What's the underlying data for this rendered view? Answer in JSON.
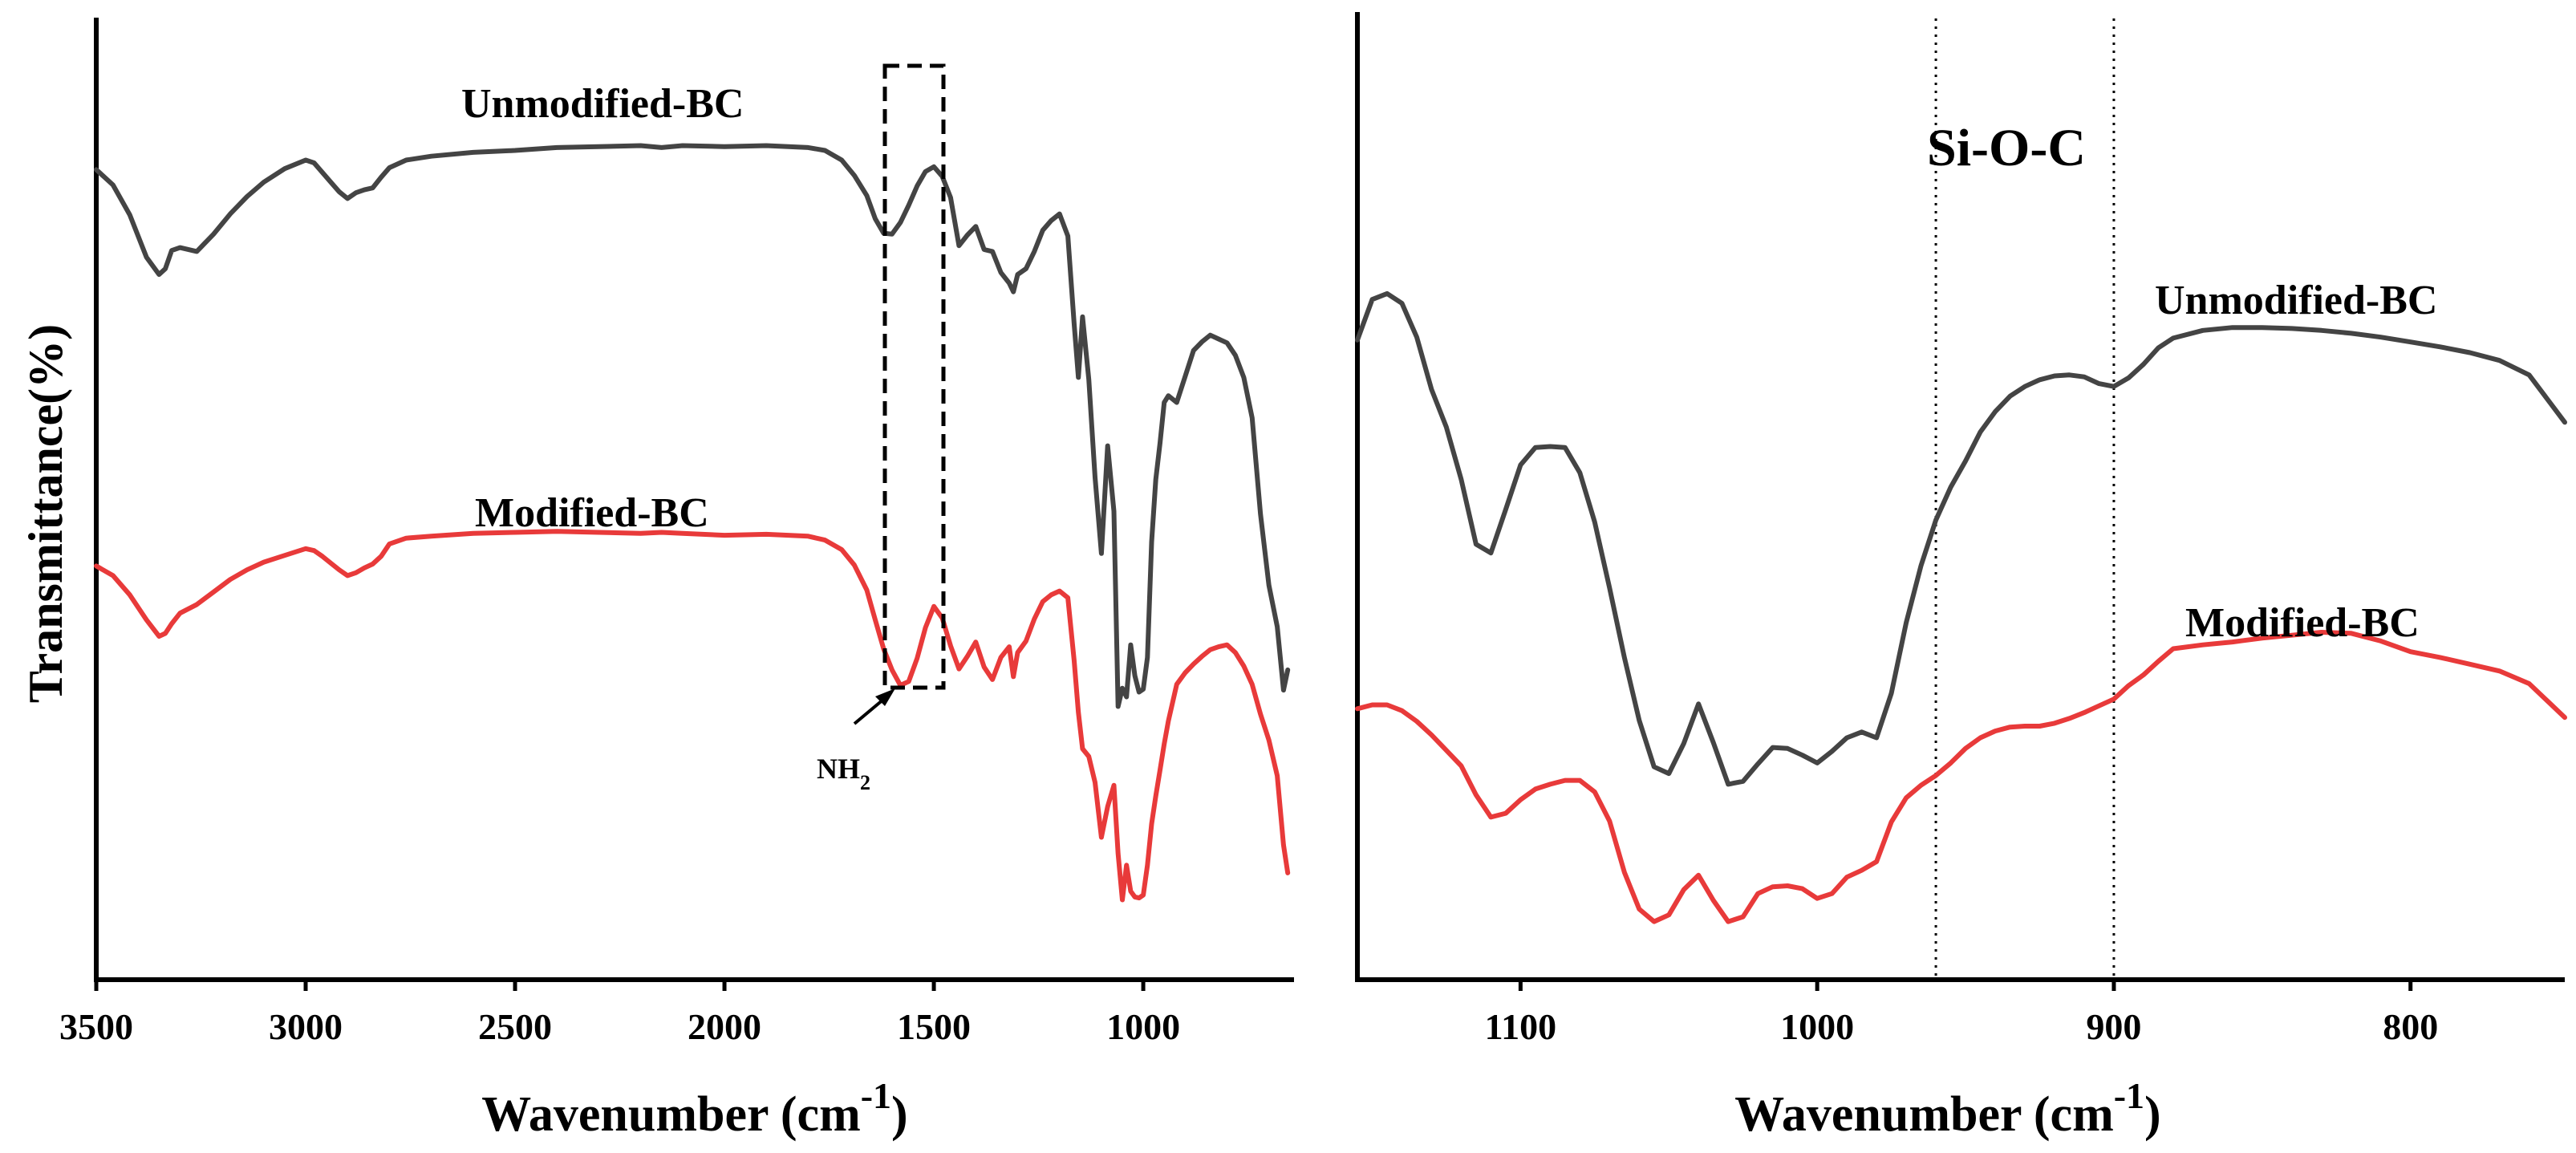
{
  "figure": {
    "shared_ylabel": "Transmittance(%)"
  },
  "chart_data": [
    {
      "type": "line",
      "panel": "left",
      "title": "",
      "xlabel": "Wavenumber (cm",
      "xlabel_superscript": "-1",
      "xlabel_close": ")",
      "ylabel": "Transmittance(%)",
      "xlim": [
        3500,
        640
      ],
      "ylim": [
        0,
        100
      ],
      "x_reversed": true,
      "grid": false,
      "xticks": [
        3500,
        3000,
        2500,
        2000,
        1500,
        1000
      ],
      "annotations": {
        "box_label": "NH",
        "box_label_sub": "2",
        "box_x": [
          1590,
          1450
        ]
      },
      "series": [
        {
          "name": "Unmodified-BC",
          "color": "#444444",
          "x": [
            3500,
            3460,
            3420,
            3380,
            3350,
            3335,
            3320,
            3300,
            3260,
            3220,
            3180,
            3140,
            3100,
            3050,
            3000,
            2980,
            2960,
            2940,
            2920,
            2900,
            2880,
            2860,
            2840,
            2820,
            2800,
            2760,
            2700,
            2600,
            2500,
            2400,
            2300,
            2200,
            2150,
            2100,
            2000,
            1900,
            1800,
            1760,
            1720,
            1690,
            1660,
            1640,
            1620,
            1600,
            1580,
            1560,
            1540,
            1520,
            1500,
            1480,
            1460,
            1440,
            1420,
            1400,
            1380,
            1360,
            1340,
            1320,
            1310,
            1300,
            1280,
            1260,
            1240,
            1220,
            1200,
            1180,
            1165,
            1155,
            1145,
            1130,
            1115,
            1100,
            1085,
            1070,
            1060,
            1050,
            1040,
            1030,
            1020,
            1010,
            1000,
            990,
            980,
            970,
            960,
            950,
            940,
            920,
            900,
            880,
            860,
            840,
            820,
            800,
            780,
            760,
            740,
            720,
            700,
            680,
            665,
            655
          ],
          "values": [
            84.2,
            82.6,
            79.5,
            75.1,
            73.3,
            73.9,
            75.8,
            76.1,
            75.7,
            77.5,
            79.6,
            81.4,
            82.9,
            84.3,
            85.2,
            84.9,
            83.9,
            82.9,
            81.9,
            81.2,
            81.8,
            82.1,
            82.3,
            83.4,
            84.4,
            85.2,
            85.6,
            86.0,
            86.2,
            86.5,
            86.6,
            86.7,
            86.5,
            86.7,
            86.6,
            86.7,
            86.5,
            86.2,
            85.2,
            83.6,
            81.5,
            79.1,
            77.6,
            77.5,
            78.7,
            80.5,
            82.5,
            84.0,
            84.5,
            83.5,
            81.3,
            76.3,
            77.4,
            78.3,
            75.9,
            75.7,
            73.5,
            72.4,
            71.5,
            73.3,
            73.9,
            75.7,
            77.9,
            78.9,
            79.6,
            77.3,
            68.2,
            62.6,
            68.9,
            62.4,
            52.2,
            44.3,
            55.5,
            48.7,
            28.4,
            30.3,
            29.4,
            34.8,
            31.6,
            29.9,
            30.2,
            33.5,
            45.5,
            52.0,
            55.8,
            60.0,
            60.7,
            60.0,
            62.7,
            65.4,
            66.3,
            67.0,
            66.6,
            66.2,
            64.9,
            62.6,
            58.4,
            48.4,
            41.0,
            36.7,
            30.1,
            32.2
          ]
        },
        {
          "name": "Modified-BC",
          "color": "#e83a3a",
          "x": [
            3500,
            3460,
            3420,
            3380,
            3350,
            3335,
            3320,
            3300,
            3260,
            3220,
            3180,
            3140,
            3100,
            3050,
            3000,
            2980,
            2960,
            2940,
            2920,
            2900,
            2880,
            2860,
            2840,
            2820,
            2800,
            2760,
            2700,
            2600,
            2500,
            2400,
            2300,
            2200,
            2150,
            2100,
            2000,
            1900,
            1800,
            1760,
            1720,
            1690,
            1660,
            1640,
            1620,
            1600,
            1580,
            1560,
            1540,
            1520,
            1500,
            1480,
            1460,
            1440,
            1420,
            1400,
            1380,
            1360,
            1340,
            1320,
            1310,
            1300,
            1280,
            1260,
            1240,
            1220,
            1200,
            1180,
            1165,
            1155,
            1145,
            1130,
            1115,
            1100,
            1085,
            1070,
            1060,
            1050,
            1040,
            1030,
            1020,
            1010,
            1000,
            990,
            980,
            970,
            960,
            950,
            940,
            920,
            900,
            880,
            860,
            840,
            820,
            800,
            780,
            760,
            740,
            720,
            700,
            680,
            665,
            655
          ],
          "values": [
            43.0,
            42.0,
            40.0,
            37.4,
            35.7,
            36.0,
            37.0,
            38.1,
            39.0,
            40.3,
            41.6,
            42.6,
            43.4,
            44.1,
            44.8,
            44.6,
            44.0,
            43.3,
            42.6,
            42.0,
            42.3,
            42.8,
            43.2,
            44.0,
            45.3,
            45.9,
            46.1,
            46.4,
            46.5,
            46.6,
            46.5,
            46.4,
            46.5,
            46.4,
            46.2,
            46.3,
            46.1,
            45.7,
            44.7,
            43.1,
            40.5,
            37.4,
            34.4,
            32.2,
            30.6,
            31.0,
            33.4,
            36.6,
            38.8,
            37.6,
            34.7,
            32.3,
            33.6,
            35.1,
            32.5,
            31.2,
            33.5,
            34.6,
            31.5,
            34.0,
            35.2,
            37.5,
            39.3,
            40.0,
            40.4,
            39.7,
            33.2,
            27.8,
            24.0,
            23.2,
            20.5,
            14.8,
            18.0,
            20.2,
            13.1,
            8.3,
            11.9,
            9.2,
            8.6,
            8.5,
            8.8,
            11.9,
            16.2,
            19.1,
            21.8,
            24.5,
            26.9,
            30.7,
            31.9,
            32.8,
            33.6,
            34.3,
            34.6,
            34.8,
            34.0,
            32.6,
            30.7,
            27.6,
            24.9,
            21.2,
            14.0,
            11.1
          ]
        }
      ]
    },
    {
      "type": "line",
      "panel": "right",
      "title": "",
      "xlabel": "Wavenumber (cm",
      "xlabel_superscript": "-1",
      "xlabel_close": ")",
      "ylabel": "",
      "xlim": [
        1155,
        748
      ],
      "ylim": [
        0,
        100
      ],
      "x_reversed": true,
      "grid": false,
      "xticks": [
        1100,
        1000,
        900,
        800
      ],
      "annotations": {
        "region_label": "Si-O-C",
        "region_lines_x": [
          960,
          900
        ]
      },
      "series": [
        {
          "name": "Unmodified-BC",
          "color": "#444444",
          "x": [
            1155,
            1150,
            1145,
            1140,
            1135,
            1130,
            1125,
            1120,
            1115,
            1110,
            1105,
            1100,
            1095,
            1090,
            1085,
            1080,
            1075,
            1070,
            1065,
            1060,
            1055,
            1050,
            1045,
            1040,
            1035,
            1030,
            1025,
            1020,
            1015,
            1010,
            1005,
            1000,
            995,
            990,
            985,
            980,
            975,
            970,
            965,
            960,
            955,
            950,
            945,
            940,
            935,
            930,
            925,
            920,
            915,
            910,
            905,
            900,
            895,
            890,
            885,
            880,
            870,
            860,
            850,
            840,
            830,
            820,
            810,
            800,
            790,
            780,
            770,
            760,
            748
          ],
          "values": [
            66.1,
            70.3,
            70.9,
            69.9,
            66.4,
            61.0,
            57.1,
            51.7,
            45.0,
            44.1,
            48.6,
            53.2,
            55.0,
            55.1,
            55.0,
            52.4,
            47.3,
            40.5,
            33.3,
            26.8,
            22.0,
            21.3,
            24.4,
            28.5,
            24.5,
            20.2,
            20.5,
            22.3,
            24.0,
            23.9,
            23.2,
            22.4,
            23.6,
            25.0,
            25.6,
            25.0,
            29.6,
            36.9,
            42.8,
            47.5,
            50.9,
            53.6,
            56.6,
            58.7,
            60.3,
            61.3,
            62.0,
            62.4,
            62.5,
            62.3,
            61.6,
            61.3,
            62.2,
            63.6,
            65.3,
            66.3,
            67.1,
            67.4,
            67.4,
            67.3,
            67.1,
            66.8,
            66.4,
            65.9,
            65.4,
            64.8,
            64.0,
            62.5,
            57.6
          ]
        },
        {
          "name": "Modified-BC",
          "color": "#e83a3a",
          "x": [
            1155,
            1150,
            1145,
            1140,
            1135,
            1130,
            1125,
            1120,
            1115,
            1110,
            1105,
            1100,
            1095,
            1090,
            1085,
            1080,
            1075,
            1070,
            1065,
            1060,
            1055,
            1050,
            1045,
            1040,
            1035,
            1030,
            1025,
            1020,
            1015,
            1010,
            1005,
            1000,
            995,
            990,
            985,
            980,
            975,
            970,
            965,
            960,
            955,
            950,
            945,
            940,
            935,
            930,
            925,
            920,
            915,
            910,
            905,
            900,
            895,
            890,
            885,
            880,
            870,
            860,
            850,
            840,
            830,
            820,
            810,
            800,
            790,
            780,
            770,
            760,
            748
          ],
          "values": [
            28.0,
            28.4,
            28.4,
            27.8,
            26.7,
            25.3,
            23.7,
            22.1,
            19.1,
            16.8,
            17.2,
            18.6,
            19.7,
            20.2,
            20.6,
            20.6,
            19.4,
            16.4,
            11.1,
            7.3,
            6.0,
            6.7,
            9.3,
            10.8,
            8.2,
            6.0,
            6.5,
            8.9,
            9.6,
            9.7,
            9.4,
            8.4,
            8.9,
            10.6,
            11.3,
            12.2,
            16.3,
            18.8,
            20.1,
            21.1,
            22.4,
            23.9,
            25.0,
            25.7,
            26.1,
            26.2,
            26.2,
            26.5,
            27.0,
            27.6,
            28.3,
            29.0,
            30.4,
            31.5,
            32.9,
            34.2,
            34.6,
            34.9,
            35.3,
            35.6,
            35.9,
            35.8,
            35.0,
            33.9,
            33.3,
            32.6,
            31.9,
            30.6,
            27.1
          ]
        }
      ]
    }
  ]
}
